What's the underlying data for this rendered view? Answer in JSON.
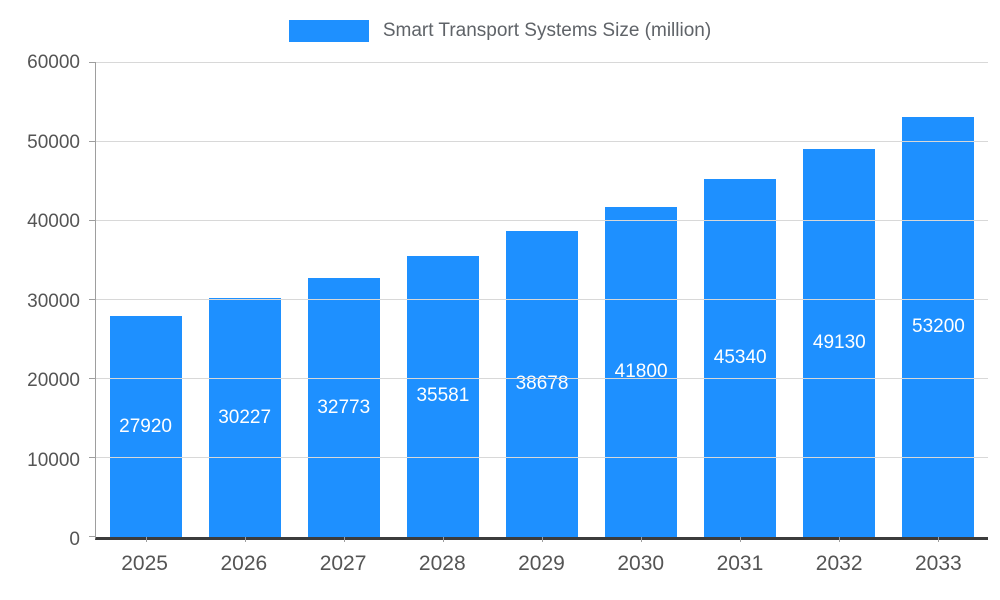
{
  "chart_data": {
    "type": "bar",
    "title": "Smart Transport Systems Size (million)",
    "categories": [
      "2025",
      "2026",
      "2027",
      "2028",
      "2029",
      "2030",
      "2031",
      "2032",
      "2033"
    ],
    "values": [
      27920,
      30227,
      32773,
      35581,
      38678,
      41800,
      45340,
      49130,
      53200
    ],
    "series": [
      {
        "name": "Smart Transport Systems Size (million)",
        "values": [
          27920,
          30227,
          32773,
          35581,
          38678,
          41800,
          45340,
          49130,
          53200
        ]
      }
    ],
    "xlabel": "",
    "ylabel": "",
    "ylim": [
      0,
      60000
    ],
    "yticks": [
      0,
      10000,
      20000,
      30000,
      40000,
      50000,
      60000
    ],
    "grid": true,
    "legend_position": "top-center",
    "value_labels": "inside-center-white",
    "bar_color": "#1e90ff",
    "axis_text_color": "#555555",
    "grid_color": "#d8d8d8"
  }
}
